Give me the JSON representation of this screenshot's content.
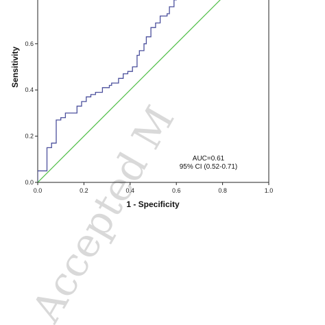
{
  "colors": {
    "roc_curve": "#4a4f9c",
    "reference_line": "#4dbd45",
    "axis": "#222222",
    "watermark": "#d9d9d9"
  },
  "watermark": {
    "text": "Accepted M"
  },
  "chart_data": {
    "type": "line",
    "xlabel": "1 - Specificity",
    "ylabel": "Sensitivity",
    "xlim": [
      0,
      1
    ],
    "ylim": [
      0,
      1
    ],
    "x_ticks": [
      "0.0",
      "0.2",
      "0.4",
      "0.6",
      "0.8",
      "1.0"
    ],
    "y_ticks": [
      "0.0",
      "0.2",
      "0.4",
      "0.6"
    ],
    "grid": false,
    "annotations": [
      "AUC=0.61",
      "95% CI (0.52-0.71)"
    ],
    "series": [
      {
        "style": "step",
        "points": [
          [
            0.0,
            0.0
          ],
          [
            0.0,
            0.05
          ],
          [
            0.04,
            0.05
          ],
          [
            0.04,
            0.15
          ],
          [
            0.06,
            0.15
          ],
          [
            0.06,
            0.17
          ],
          [
            0.08,
            0.17
          ],
          [
            0.08,
            0.27
          ],
          [
            0.1,
            0.27
          ],
          [
            0.1,
            0.28
          ],
          [
            0.12,
            0.28
          ],
          [
            0.12,
            0.3
          ],
          [
            0.17,
            0.3
          ],
          [
            0.17,
            0.33
          ],
          [
            0.19,
            0.33
          ],
          [
            0.19,
            0.35
          ],
          [
            0.21,
            0.35
          ],
          [
            0.21,
            0.37
          ],
          [
            0.23,
            0.37
          ],
          [
            0.23,
            0.38
          ],
          [
            0.25,
            0.38
          ],
          [
            0.25,
            0.39
          ],
          [
            0.28,
            0.39
          ],
          [
            0.28,
            0.41
          ],
          [
            0.31,
            0.41
          ],
          [
            0.31,
            0.42
          ],
          [
            0.32,
            0.42
          ],
          [
            0.32,
            0.43
          ],
          [
            0.35,
            0.43
          ],
          [
            0.35,
            0.45
          ],
          [
            0.37,
            0.45
          ],
          [
            0.37,
            0.47
          ],
          [
            0.39,
            0.47
          ],
          [
            0.39,
            0.48
          ],
          [
            0.41,
            0.48
          ],
          [
            0.41,
            0.5
          ],
          [
            0.43,
            0.5
          ],
          [
            0.43,
            0.55
          ],
          [
            0.44,
            0.55
          ],
          [
            0.44,
            0.57
          ],
          [
            0.46,
            0.57
          ],
          [
            0.46,
            0.6
          ],
          [
            0.47,
            0.6
          ],
          [
            0.47,
            0.63
          ],
          [
            0.49,
            0.63
          ],
          [
            0.49,
            0.67
          ],
          [
            0.51,
            0.67
          ],
          [
            0.51,
            0.69
          ],
          [
            0.53,
            0.69
          ],
          [
            0.53,
            0.72
          ],
          [
            0.56,
            0.72
          ],
          [
            0.56,
            0.73
          ],
          [
            0.57,
            0.73
          ],
          [
            0.57,
            0.76
          ],
          [
            0.59,
            0.76
          ],
          [
            0.59,
            0.79
          ],
          [
            0.6,
            0.79
          ],
          [
            0.6,
            0.8
          ]
        ]
      },
      {
        "style": "reference",
        "points": [
          [
            0,
            0
          ],
          [
            1,
            1
          ]
        ]
      }
    ]
  }
}
